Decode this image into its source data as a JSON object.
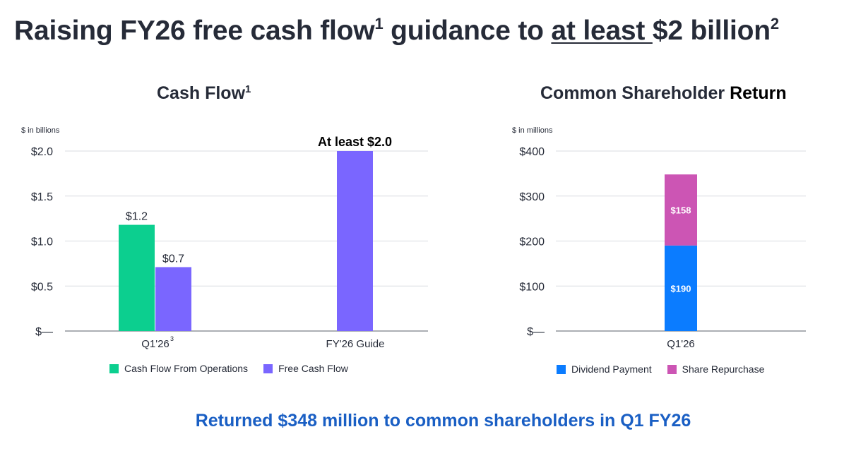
{
  "headline": {
    "part1": "Raising FY26 free cash flow",
    "sup1": "1",
    "part2": " guidance to ",
    "underlined": "at least ",
    "part3": "$2 billion",
    "sup2": "2"
  },
  "footer": "Returned $348 million to common shareholders in Q1 FY26",
  "colors": {
    "cash_flow_from_operations": "#0ccf8f",
    "free_cash_flow": "#7a66ff",
    "dividend_payment": "#0b7cff",
    "share_repurchase": "#cc55b4",
    "footer_text": "#1a5fc4"
  },
  "chart_data": [
    {
      "type": "bar",
      "title": "Cash Flow",
      "title_sup": "1",
      "units": "$ in billions",
      "categories": [
        "Q1'26",
        "FY'26 Guide"
      ],
      "category_sups": [
        "3",
        ""
      ],
      "series": [
        {
          "name": "Cash Flow From Operations",
          "values": [
            1.18,
            null
          ],
          "labels": [
            "$1.2",
            ""
          ]
        },
        {
          "name": "Free Cash Flow",
          "values": [
            0.71,
            2.0
          ],
          "labels": [
            "$0.7",
            "At least $2.0"
          ]
        }
      ],
      "y_ticks": [
        0,
        0.5,
        1.0,
        1.5,
        2.0
      ],
      "y_tick_labels": [
        "$—",
        "$0.5",
        "$1.0",
        "$1.5",
        "$2.0"
      ],
      "ylim": [
        0,
        2.0
      ],
      "grid": true,
      "legend": "bottom"
    },
    {
      "type": "bar",
      "stacked": true,
      "title_part1": "Common Shareholder ",
      "title_part2": "Return",
      "units": "$ in millions",
      "categories": [
        "Q1'26"
      ],
      "series": [
        {
          "name": "Dividend Payment",
          "values": [
            190
          ],
          "labels": [
            "$190"
          ]
        },
        {
          "name": "Share Repurchase",
          "values": [
            158
          ],
          "labels": [
            "$158"
          ]
        }
      ],
      "y_ticks": [
        0,
        100,
        200,
        300,
        400
      ],
      "y_tick_labels": [
        "$—",
        "$100",
        "$200",
        "$300",
        "$400"
      ],
      "ylim": [
        0,
        400
      ],
      "grid": true,
      "legend": "bottom"
    }
  ]
}
